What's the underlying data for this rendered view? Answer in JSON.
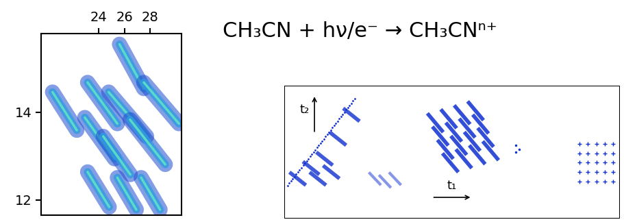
{
  "chart_data": {
    "type": "scatter",
    "xlim": [
      19.45,
      30.5
    ],
    "ylim": [
      11.65,
      15.8
    ],
    "xticks": [
      24,
      26,
      28
    ],
    "yticks": [
      12,
      14
    ],
    "tick_labels": true,
    "color": "#1f4fd0",
    "islands": [
      {
        "x": [
          20.35,
          22.26
        ],
        "y": [
          14.46,
          13.59
        ]
      },
      {
        "x": [
          23.11,
          25.45
        ],
        "y": [
          14.68,
          13.74
        ]
      },
      {
        "x": [
          25.62,
          27.53
        ],
        "y": [
          15.55,
          14.54
        ]
      },
      {
        "x": [
          24.77,
          27.75
        ],
        "y": [
          14.46,
          13.45
        ]
      },
      {
        "x": [
          27.53,
          30.3
        ],
        "y": [
          14.68,
          13.74
        ]
      },
      {
        "x": [
          26.45,
          29.22
        ],
        "y": [
          13.83,
          12.81
        ]
      },
      {
        "x": [
          22.89,
          25.23
        ],
        "y": [
          13.88,
          12.94
        ]
      },
      {
        "x": [
          24.34,
          26.47
        ],
        "y": [
          13.45,
          12.58
        ]
      },
      {
        "x": [
          23.11,
          24.81
        ],
        "y": [
          12.64,
          11.84
        ]
      },
      {
        "x": [
          25.45,
          26.94
        ],
        "y": [
          12.51,
          11.78
        ]
      },
      {
        "x": [
          27.32,
          28.81
        ],
        "y": [
          12.51,
          11.78
        ]
      }
    ]
  },
  "equation": "CH₃CN + hν/e⁻ → CH₃CNⁿ⁺",
  "diagram": {
    "x_label": "t₁",
    "y_label": "t₂"
  }
}
